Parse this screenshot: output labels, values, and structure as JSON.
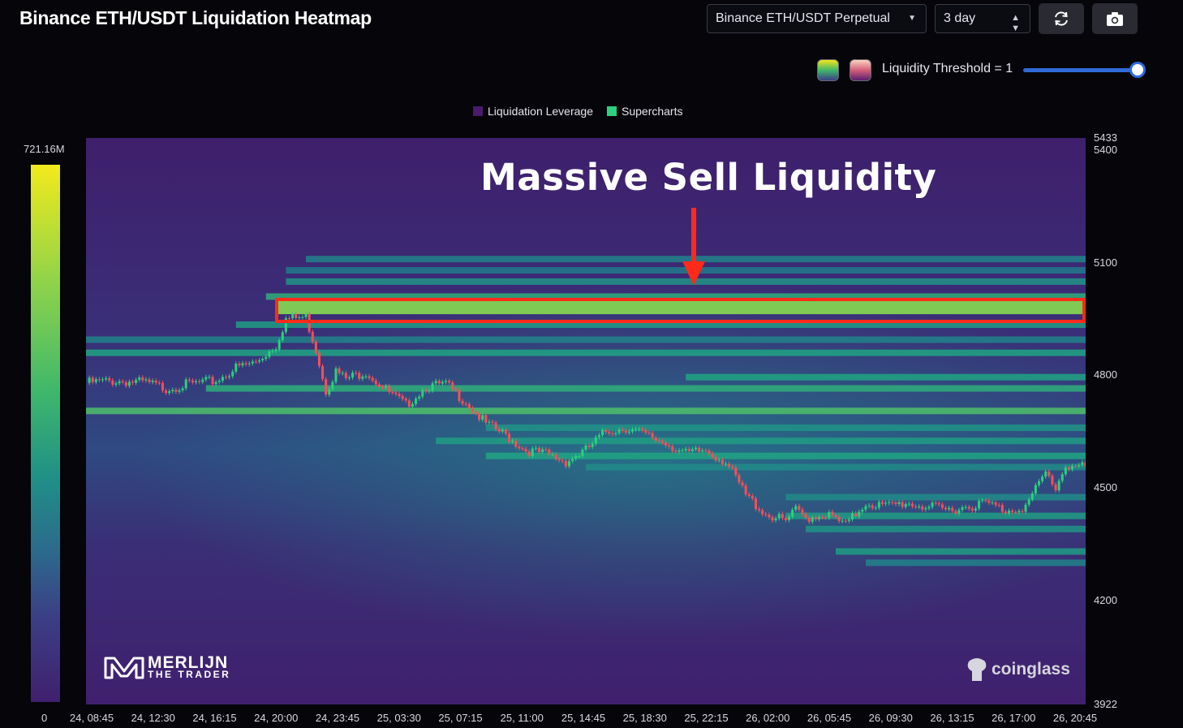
{
  "header": {
    "title": "Binance ETH/USDT Liquidation Heatmap",
    "pair_select": "Binance ETH/USDT Perpetual",
    "range_select": "3 day"
  },
  "controls": {
    "threshold_label": "Liquidity Threshold = 1",
    "threshold_value": 1,
    "refresh_icon": "refresh-icon",
    "camera_icon": "camera-icon"
  },
  "legend": {
    "items": [
      {
        "label": "Liquidation Leverage",
        "color": "#4a1a6b"
      },
      {
        "label": "Supercharts",
        "color": "#2bd17e"
      }
    ]
  },
  "colorbar": {
    "max_label": "721.16M",
    "min_label": "0"
  },
  "annotation": {
    "text": "Massive Sell Liquidity"
  },
  "watermarks": {
    "left_line1": "MERLIJN",
    "left_line2": "THE TRADER",
    "right": "coinglass"
  },
  "chart_data": {
    "type": "heatmap",
    "title": "",
    "y_axis": {
      "range": [
        3922,
        5433
      ],
      "ticks": [
        5433,
        5400,
        5100,
        4800,
        4500,
        4200,
        3922
      ]
    },
    "x_axis": {
      "ticks": [
        "24, 08:45",
        "24, 12:30",
        "24, 16:15",
        "24, 20:00",
        "24, 23:45",
        "25, 03:30",
        "25, 07:15",
        "25, 11:00",
        "25, 14:45",
        "25, 18:30",
        "25, 22:15",
        "26, 02:00",
        "26, 05:45",
        "26, 09:30",
        "26, 13:15",
        "26, 17:00",
        "26, 20:45"
      ]
    },
    "liquidity_bands": [
      {
        "price": 5110,
        "intensity": 0.35,
        "start": 0.22
      },
      {
        "price": 5080,
        "intensity": 0.3,
        "start": 0.2
      },
      {
        "price": 5050,
        "intensity": 0.45,
        "start": 0.2
      },
      {
        "price": 5010,
        "intensity": 0.6,
        "start": 0.18
      },
      {
        "price": 4975,
        "intensity": 0.85,
        "start": 0.19
      },
      {
        "price": 4935,
        "intensity": 0.5,
        "start": 0.15
      },
      {
        "price": 4895,
        "intensity": 0.35,
        "start": 0.0
      },
      {
        "price": 4860,
        "intensity": 0.55,
        "start": 0.0
      },
      {
        "price": 4795,
        "intensity": 0.55,
        "start": 0.6
      },
      {
        "price": 4765,
        "intensity": 0.6,
        "start": 0.12
      },
      {
        "price": 4705,
        "intensity": 0.7,
        "start": 0.0
      },
      {
        "price": 4660,
        "intensity": 0.45,
        "start": 0.4
      },
      {
        "price": 4625,
        "intensity": 0.5,
        "start": 0.35
      },
      {
        "price": 4585,
        "intensity": 0.55,
        "start": 0.4
      },
      {
        "price": 4555,
        "intensity": 0.4,
        "start": 0.5
      },
      {
        "price": 4475,
        "intensity": 0.4,
        "start": 0.7
      },
      {
        "price": 4425,
        "intensity": 0.5,
        "start": 0.7
      },
      {
        "price": 4390,
        "intensity": 0.45,
        "start": 0.72
      },
      {
        "price": 4330,
        "intensity": 0.5,
        "start": 0.75
      },
      {
        "price": 4300,
        "intensity": 0.35,
        "start": 0.78
      }
    ],
    "highlight_zone": {
      "price_low": 4963,
      "price_high": 5000,
      "label": "Massive Sell Liquidity"
    },
    "price_path": {
      "t": [
        0.0,
        0.03,
        0.06,
        0.08,
        0.1,
        0.13,
        0.15,
        0.17,
        0.19,
        0.2,
        0.22,
        0.23,
        0.24,
        0.25,
        0.26,
        0.27,
        0.28,
        0.3,
        0.32,
        0.34,
        0.36,
        0.38,
        0.39,
        0.4,
        0.42,
        0.44,
        0.46,
        0.48,
        0.5,
        0.52,
        0.54,
        0.56,
        0.58,
        0.6,
        0.62,
        0.64,
        0.66,
        0.68,
        0.7,
        0.71,
        0.72,
        0.74,
        0.76,
        0.78,
        0.8,
        0.82,
        0.84,
        0.86,
        0.88,
        0.9,
        0.92,
        0.94,
        0.96,
        0.97,
        0.98,
        1.0
      ],
      "price": [
        4780,
        4785,
        4780,
        4765,
        4775,
        4785,
        4820,
        4835,
        4880,
        4950,
        4955,
        4870,
        4760,
        4810,
        4790,
        4800,
        4810,
        4760,
        4720,
        4770,
        4775,
        4730,
        4700,
        4670,
        4640,
        4600,
        4590,
        4570,
        4600,
        4650,
        4660,
        4640,
        4620,
        4590,
        4600,
        4570,
        4480,
        4430,
        4410,
        4440,
        4420,
        4430,
        4400,
        4460,
        4450,
        4460,
        4450,
        4440,
        4450,
        4460,
        4440,
        4450,
        4540,
        4500,
        4560,
        4555
      ]
    }
  }
}
